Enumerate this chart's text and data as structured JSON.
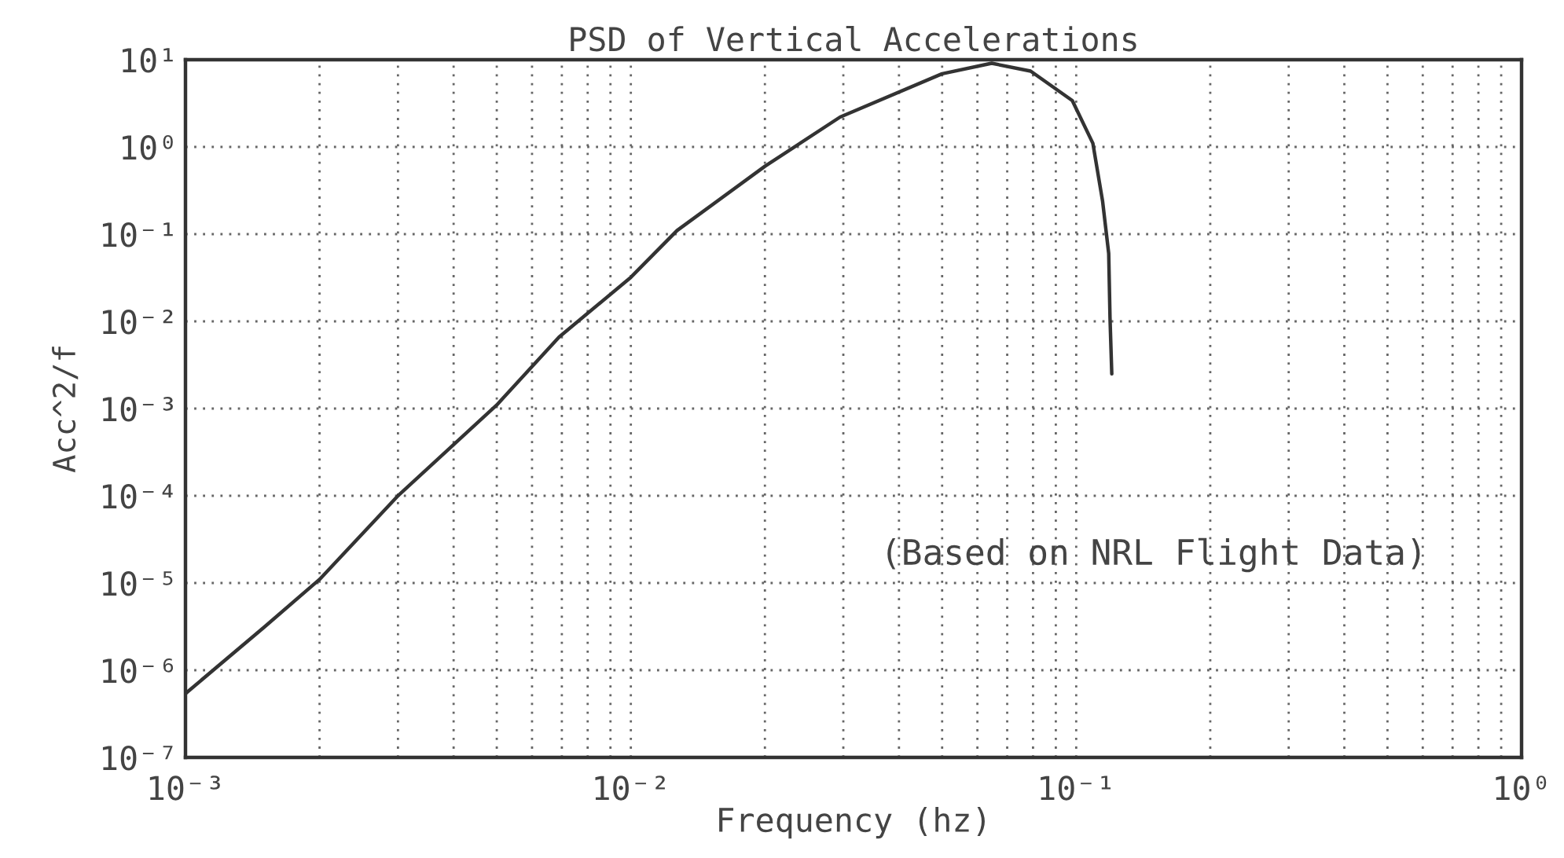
{
  "chart_data": {
    "type": "line",
    "title": "PSD of Vertical Accelerations",
    "xlabel": "Frequency (hz)",
    "ylabel": "Acc^2/f",
    "annotations": [
      "(Based on NRL Flight Data)"
    ],
    "log": "xy",
    "grid": true,
    "marker": "none",
    "line_style": "solid",
    "xlim": [
      0.001,
      1
    ],
    "ylim": [
      1e-07,
      10
    ],
    "xticks": [
      {
        "value": 0.001,
        "label": "10⁻³"
      },
      {
        "value": 0.01,
        "label": "10⁻²"
      },
      {
        "value": 0.1,
        "label": "10⁻¹"
      },
      {
        "value": 1,
        "label": "10⁰"
      }
    ],
    "yticks": [
      {
        "value": 1e-07,
        "label": "10⁻⁷"
      },
      {
        "value": 1e-06,
        "label": "10⁻⁶"
      },
      {
        "value": 1e-05,
        "label": "10⁻⁵"
      },
      {
        "value": 0.0001,
        "label": "10⁻⁴"
      },
      {
        "value": 0.001,
        "label": "10⁻³"
      },
      {
        "value": 0.01,
        "label": "10⁻²"
      },
      {
        "value": 0.1,
        "label": "10⁻¹"
      },
      {
        "value": 1,
        "label": "10⁰"
      },
      {
        "value": 10,
        "label": "10¹"
      }
    ],
    "x": [
      0.001,
      0.0015,
      0.002,
      0.003,
      0.005,
      0.0069,
      0.01,
      0.0127,
      0.02,
      0.0295,
      0.05,
      0.0646,
      0.079,
      0.098,
      0.109,
      0.1146,
      0.1183,
      0.1191,
      0.1202
    ],
    "series": [
      {
        "color": "#333333",
        "values": [
          5.4e-07,
          3.1e-06,
          1.1e-05,
          0.0001,
          0.0011,
          0.0066,
          0.032,
          0.11,
          0.6,
          2.2,
          6.9,
          9.1,
          7.4,
          3.4,
          1.1,
          0.24,
          0.06,
          0.011,
          0.0025
        ]
      }
    ]
  }
}
